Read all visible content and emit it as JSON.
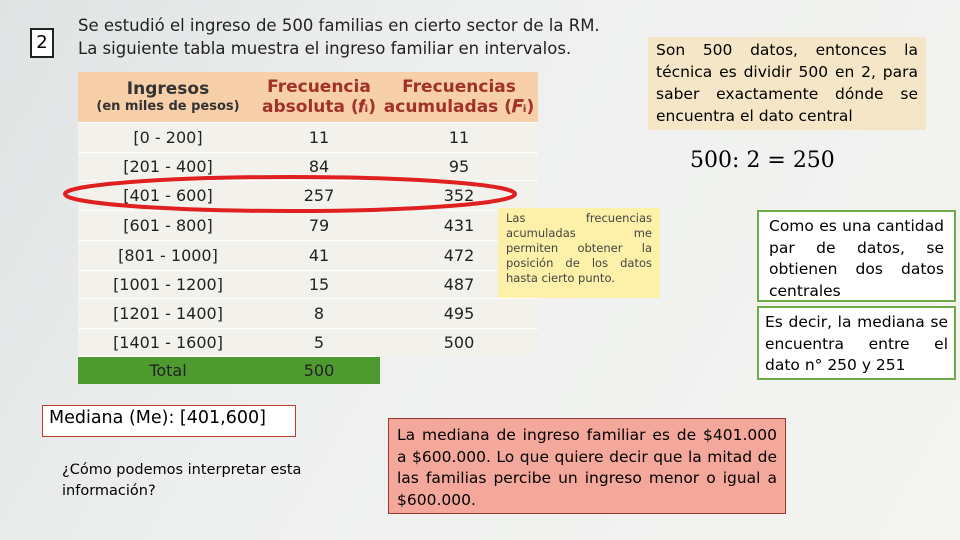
{
  "slide_number": "2",
  "intro": [
    "Se estudió el ingreso de 500 familias en cierto sector de la RM.",
    "La siguiente tabla muestra el ingreso familiar en intervalos."
  ],
  "table": {
    "header": {
      "col1_title": "Ingresos",
      "col1_subtitle": "(en miles de pesos)",
      "col2": [
        "Frecuencia",
        "absoluta (𝒇ᵢ)"
      ],
      "col3": [
        "Frecuencias",
        "acumuladas (𝑭ᵢ)"
      ]
    },
    "rows": [
      [
        "[0 - 200]",
        "11",
        "11"
      ],
      [
        "[201 - 400]",
        "84",
        "95"
      ],
      [
        "[401 - 600]",
        "257",
        "352"
      ],
      [
        "[601 - 800]",
        "79",
        "431"
      ],
      [
        "[801 - 1000]",
        "41",
        "472"
      ],
      [
        "[1001 - 1200]",
        "15",
        "487"
      ],
      [
        "[1201 - 1400]",
        "8",
        "495"
      ],
      [
        "[1401 - 1600]",
        "5",
        "500"
      ]
    ],
    "total": [
      "Total",
      "500"
    ]
  },
  "note_right": "Son 500 datos, entonces la técnica es dividir 500 en 2, para saber exactamente dónde se encuentra el dato central",
  "formula": "500: 2 = 250",
  "note_cumulative": "Las frecuencias acumuladas me permiten obtener la posición de los datos hasta cierto punto.",
  "note_even": "Como es una cantidad par de datos, se obtienen dos datos centrales",
  "note_median_position": "Es decir, la mediana se encuentra entre el dato n° 250 y 251",
  "median_label": "Mediana (Me): [401,600]",
  "question": "¿Cómo podemos interpretar esta información?",
  "conclusion": "La mediana de ingreso familiar es de $401.000 a $600.000. Lo que quiere decir que la mitad de las familias percibe un ingreso menor o igual a $600.000."
}
